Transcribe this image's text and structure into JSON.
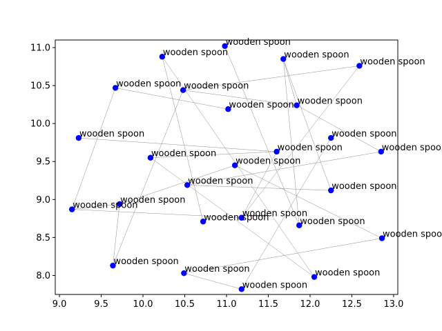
{
  "chart_data": {
    "type": "scatter",
    "title": "",
    "xlabel": "",
    "ylabel": "",
    "xlim": [
      8.95,
      13.05
    ],
    "ylim": [
      7.75,
      11.1
    ],
    "grid": false,
    "xticks": [
      9.0,
      9.5,
      10.0,
      10.5,
      11.0,
      11.5,
      12.0,
      12.5,
      13.0
    ],
    "xtick_labels": [
      "9.0",
      "9.5",
      "10.0",
      "10.5",
      "11.0",
      "11.5",
      "12.0",
      "12.5",
      "13.0"
    ],
    "yticks": [
      8.0,
      8.5,
      9.0,
      9.5,
      10.0,
      10.5,
      11.0
    ],
    "ytick_labels": [
      "8.0",
      "8.5",
      "9.0",
      "9.5",
      "10.0",
      "10.5",
      "11.0"
    ],
    "point_color": "#0000ff",
    "line_color": "#808080",
    "points": [
      {
        "x": 10.98,
        "y": 11.02,
        "label": "wooden spoon"
      },
      {
        "x": 10.23,
        "y": 10.88,
        "label": "wooden spoon"
      },
      {
        "x": 11.68,
        "y": 10.85,
        "label": "wooden spoon"
      },
      {
        "x": 12.59,
        "y": 10.76,
        "label": "wooden spoon"
      },
      {
        "x": 9.67,
        "y": 10.47,
        "label": "wooden spoon"
      },
      {
        "x": 10.48,
        "y": 10.44,
        "label": "wooden spoon"
      },
      {
        "x": 11.84,
        "y": 10.24,
        "label": "wooden spoon"
      },
      {
        "x": 11.02,
        "y": 10.19,
        "label": "wooden spoon"
      },
      {
        "x": 9.23,
        "y": 9.81,
        "label": "wooden spoon"
      },
      {
        "x": 12.25,
        "y": 9.81,
        "label": "wooden spoon"
      },
      {
        "x": 12.85,
        "y": 9.63,
        "label": "wooden spoon"
      },
      {
        "x": 11.6,
        "y": 9.63,
        "label": "wooden spoon"
      },
      {
        "x": 10.09,
        "y": 9.55,
        "label": "wooden spoon"
      },
      {
        "x": 11.1,
        "y": 9.45,
        "label": "wooden spoon"
      },
      {
        "x": 10.53,
        "y": 9.19,
        "label": "wooden spoon"
      },
      {
        "x": 12.25,
        "y": 9.12,
        "label": "wooden spoon"
      },
      {
        "x": 9.72,
        "y": 8.94,
        "label": "wooden spoon"
      },
      {
        "x": 9.15,
        "y": 8.87,
        "label": "wooden spoon"
      },
      {
        "x": 11.18,
        "y": 8.76,
        "label": "wooden spoon"
      },
      {
        "x": 10.72,
        "y": 8.71,
        "label": "wooden spoon"
      },
      {
        "x": 11.87,
        "y": 8.66,
        "label": "wooden spoon"
      },
      {
        "x": 12.86,
        "y": 8.49,
        "label": "wooden spoon"
      },
      {
        "x": 9.64,
        "y": 8.13,
        "label": "wooden spoon"
      },
      {
        "x": 10.49,
        "y": 8.03,
        "label": "wooden spoon"
      },
      {
        "x": 12.05,
        "y": 7.98,
        "label": "wooden spoon"
      },
      {
        "x": 11.18,
        "y": 7.82,
        "label": "wooden spoon"
      }
    ],
    "edges": [
      [
        17,
        18
      ],
      [
        17,
        4
      ],
      [
        17,
        16
      ],
      [
        22,
        5
      ],
      [
        22,
        16
      ],
      [
        23,
        21
      ],
      [
        23,
        25
      ],
      [
        25,
        9
      ],
      [
        24,
        1
      ],
      [
        24,
        12
      ],
      [
        19,
        1
      ],
      [
        20,
        0
      ],
      [
        20,
        2
      ],
      [
        6,
        2
      ],
      [
        6,
        5
      ],
      [
        6,
        10
      ],
      [
        15,
        14
      ],
      [
        15,
        2
      ],
      [
        14,
        10
      ],
      [
        11,
        8
      ],
      [
        11,
        12
      ],
      [
        11,
        18
      ],
      [
        3,
        5
      ],
      [
        3,
        18
      ],
      [
        7,
        4
      ],
      [
        13,
        21
      ],
      [
        13,
        16
      ]
    ]
  }
}
